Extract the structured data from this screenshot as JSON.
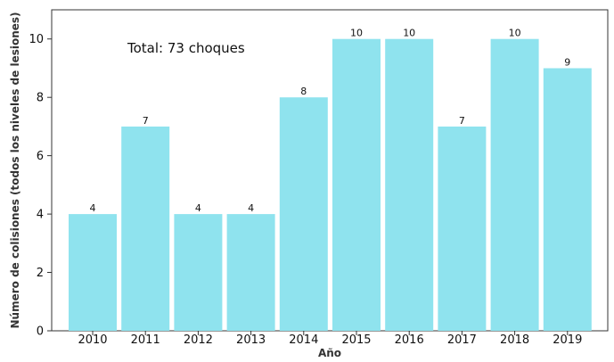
{
  "chart_data": {
    "type": "bar",
    "categories": [
      "2010",
      "2011",
      "2012",
      "2013",
      "2014",
      "2015",
      "2016",
      "2017",
      "2018",
      "2019"
    ],
    "values": [
      4,
      7,
      4,
      4,
      8,
      10,
      10,
      7,
      10,
      9
    ],
    "xlabel": "Año",
    "ylabel": "Número de colisiones (todos los niveles de lesiones)",
    "yticks": [
      0,
      2,
      4,
      6,
      8,
      10
    ],
    "ylim": [
      0,
      11
    ],
    "grid": false,
    "legend": "none",
    "annotation": "Total: 73 choques",
    "bar_color": "#8fe3ee",
    "data_labels": true
  }
}
